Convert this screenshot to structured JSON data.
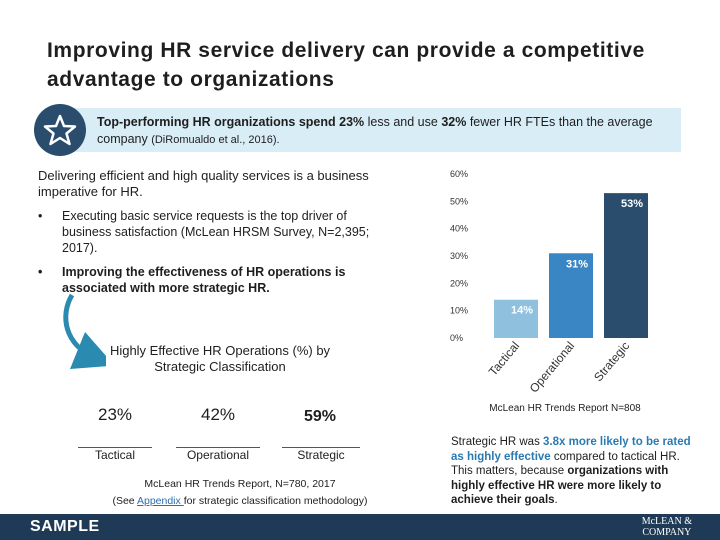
{
  "title": "Improving HR service delivery can provide a competitive advantage to organizations",
  "banner": {
    "icon": "star-icon",
    "pre": "Top-performing HR organizations spend ",
    "b1": "23%",
    "mid1": " less and use ",
    "b2": "32%",
    "mid2": " fewer HR FTEs than the average company ",
    "cite": "(DiRomualdo et al., 2016)."
  },
  "lead": "Delivering efficient and high quality services is a business imperative for HR.",
  "bullets": [
    {
      "marker": "•",
      "text": "Executing basic service requests is the top driver of business satisfaction (McLean HRSM Survey, N=2,395; 2017)."
    },
    {
      "marker": "•",
      "text": "Improving the effectiveness of HR operations is associated with more strategic HR."
    }
  ],
  "strategic_classification": {
    "title": "Highly Effective HR Operations (%) by Strategic Classification",
    "items": [
      {
        "value": "23%",
        "label": "Tactical"
      },
      {
        "value": "42%",
        "label": "Operational"
      },
      {
        "value": "59%",
        "label": "Strategic"
      }
    ],
    "report": "McLean HR Trends Report, N=780, 2017",
    "see_pre": "(See ",
    "see_link": "Appendix ",
    "see_post": "for strategic classification methodology)"
  },
  "chart_data": {
    "type": "bar",
    "categories": [
      "Tactical",
      "Operational",
      "Strategic"
    ],
    "values": [
      14,
      31,
      53
    ],
    "value_labels": [
      "14%",
      "31%",
      "53%"
    ],
    "ylim": [
      0,
      60
    ],
    "yticks": [
      "0%",
      "10%",
      "20%",
      "30%",
      "40%",
      "50%",
      "60%"
    ],
    "colors": [
      "#8fc1de",
      "#3a86c4",
      "#2a4d6e"
    ],
    "grid": false
  },
  "chart_caption": "McLean HR Trends Report N=808",
  "callout": {
    "pre": "Strategic HR was ",
    "hl1": "3.8x more likely to be rated as highly effective",
    "mid": " compared to tactical HR. This matters, because ",
    "bold": "organizations with highly effective HR were more likely to achieve their goals",
    "end": "."
  },
  "footer": {
    "sample": "SAMPLE",
    "logo_line1": "McLEAN &",
    "logo_line2": "COMPANY"
  }
}
